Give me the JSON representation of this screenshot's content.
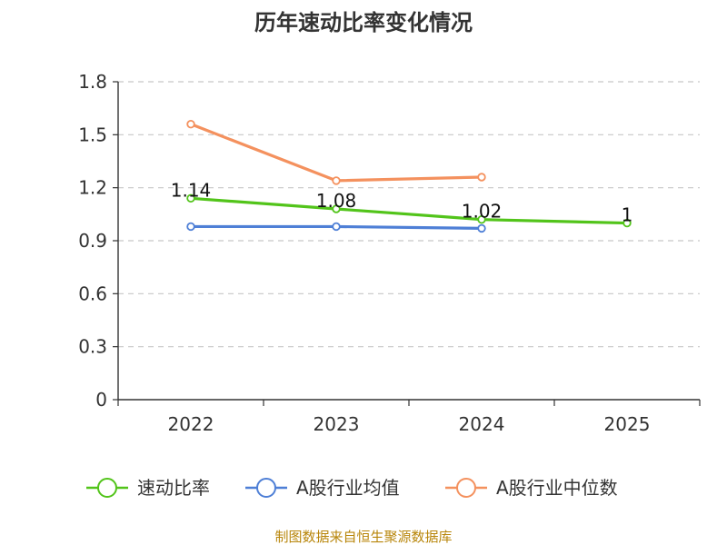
{
  "chart_data": {
    "type": "line",
    "title": "历年速动比率变化情况",
    "categories": [
      "2022",
      "2023",
      "2024",
      "2025"
    ],
    "ylim": [
      0,
      1.8
    ],
    "yticks": [
      "0",
      "0.3",
      "0.6",
      "0.9",
      "1.2",
      "1.5",
      "1.8"
    ],
    "grid": true,
    "legend_position": "bottom",
    "series": [
      {
        "name": "速动比率",
        "color": "#52c41a",
        "values": [
          1.14,
          1.08,
          1.02,
          1.0
        ],
        "labels": [
          "1.14",
          "1.08",
          "1.02",
          "1"
        ]
      },
      {
        "name": "A股行业均值",
        "color": "#4e7fd6",
        "values": [
          0.98,
          0.98,
          0.97,
          null
        ],
        "labels": []
      },
      {
        "name": "A股行业中位数",
        "color": "#f4915e",
        "values": [
          1.56,
          1.24,
          1.26,
          null
        ],
        "labels": []
      }
    ],
    "source": "制图数据来自恒生聚源数据库"
  }
}
